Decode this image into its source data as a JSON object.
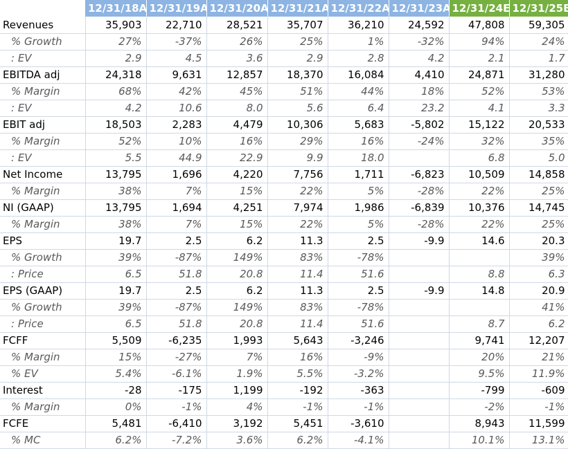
{
  "header": {
    "columns": [
      "12/31/18A",
      "12/31/19A",
      "12/31/20A",
      "12/31/21A",
      "12/31/22A",
      "12/31/23A",
      "12/31/24E",
      "12/31/25E"
    ]
  },
  "colors": {
    "actual_header": "#8db4e2",
    "estimate_header": "#76b041",
    "sub_row_text": "#595959"
  },
  "rows": [
    {
      "label": "Revenues",
      "sub": false,
      "values": [
        "35,903",
        "22,710",
        "28,521",
        "35,707",
        "36,210",
        "24,592",
        "47,808",
        "59,305"
      ]
    },
    {
      "label": "% Growth",
      "sub": true,
      "values": [
        "27%",
        "-37%",
        "26%",
        "25%",
        "1%",
        "-32%",
        "94%",
        "24%"
      ]
    },
    {
      "label": ": EV",
      "sub": true,
      "values": [
        "2.9",
        "4.5",
        "3.6",
        "2.9",
        "2.8",
        "4.2",
        "2.1",
        "1.7"
      ]
    },
    {
      "label": "EBITDA adj",
      "sub": false,
      "values": [
        "24,318",
        "9,631",
        "12,857",
        "18,370",
        "16,084",
        "4,410",
        "24,871",
        "31,280"
      ]
    },
    {
      "label": "% Margin",
      "sub": true,
      "values": [
        "68%",
        "42%",
        "45%",
        "51%",
        "44%",
        "18%",
        "52%",
        "53%"
      ]
    },
    {
      "label": ": EV",
      "sub": true,
      "values": [
        "4.2",
        "10.6",
        "8.0",
        "5.6",
        "6.4",
        "23.2",
        "4.1",
        "3.3"
      ]
    },
    {
      "label": "EBIT adj",
      "sub": false,
      "values": [
        "18,503",
        "2,283",
        "4,479",
        "10,306",
        "5,683",
        "-5,802",
        "15,122",
        "20,533"
      ]
    },
    {
      "label": "% Margin",
      "sub": true,
      "values": [
        "52%",
        "10%",
        "16%",
        "29%",
        "16%",
        "-24%",
        "32%",
        "35%"
      ]
    },
    {
      "label": ": EV",
      "sub": true,
      "values": [
        "5.5",
        "44.9",
        "22.9",
        "9.9",
        "18.0",
        "",
        "6.8",
        "5.0"
      ]
    },
    {
      "label": "Net Income",
      "sub": false,
      "values": [
        "13,795",
        "1,696",
        "4,220",
        "7,756",
        "1,711",
        "-6,823",
        "10,509",
        "14,858"
      ]
    },
    {
      "label": "% Margin",
      "sub": true,
      "values": [
        "38%",
        "7%",
        "15%",
        "22%",
        "5%",
        "-28%",
        "22%",
        "25%"
      ]
    },
    {
      "label": "NI (GAAP)",
      "sub": false,
      "values": [
        "13,795",
        "1,694",
        "4,251",
        "7,974",
        "1,986",
        "-6,839",
        "10,376",
        "14,745"
      ]
    },
    {
      "label": "% Margin",
      "sub": true,
      "values": [
        "38%",
        "7%",
        "15%",
        "22%",
        "5%",
        "-28%",
        "22%",
        "25%"
      ]
    },
    {
      "label": "EPS",
      "sub": false,
      "values": [
        "19.7",
        "2.5",
        "6.2",
        "11.3",
        "2.5",
        "-9.9",
        "14.6",
        "20.3"
      ]
    },
    {
      "label": "% Growth",
      "sub": true,
      "values": [
        "39%",
        "-87%",
        "149%",
        "83%",
        "-78%",
        "",
        "",
        "39%"
      ]
    },
    {
      "label": ": Price",
      "sub": true,
      "values": [
        "6.5",
        "51.8",
        "20.8",
        "11.4",
        "51.6",
        "",
        "8.8",
        "6.3"
      ]
    },
    {
      "label": "EPS (GAAP)",
      "sub": false,
      "values": [
        "19.7",
        "2.5",
        "6.2",
        "11.3",
        "2.5",
        "-9.9",
        "14.8",
        "20.9"
      ]
    },
    {
      "label": "% Growth",
      "sub": true,
      "values": [
        "39%",
        "-87%",
        "149%",
        "83%",
        "-78%",
        "",
        "",
        "41%"
      ]
    },
    {
      "label": ": Price",
      "sub": true,
      "values": [
        "6.5",
        "51.8",
        "20.8",
        "11.4",
        "51.6",
        "",
        "8.7",
        "6.2"
      ]
    },
    {
      "label": "FCFF",
      "sub": false,
      "values": [
        "5,509",
        "-6,235",
        "1,993",
        "5,643",
        "-3,246",
        "",
        "9,741",
        "12,207"
      ]
    },
    {
      "label": "% Margin",
      "sub": true,
      "values": [
        "15%",
        "-27%",
        "7%",
        "16%",
        "-9%",
        "",
        "20%",
        "21%"
      ]
    },
    {
      "label": "% EV",
      "sub": true,
      "values": [
        "5.4%",
        "-6.1%",
        "1.9%",
        "5.5%",
        "-3.2%",
        "",
        "9.5%",
        "11.9%"
      ]
    },
    {
      "label": "Interest",
      "sub": false,
      "values": [
        "-28",
        "-175",
        "1,199",
        "-192",
        "-363",
        "",
        "-799",
        "-609"
      ]
    },
    {
      "label": "% Margin",
      "sub": true,
      "values": [
        "0%",
        "-1%",
        "4%",
        "-1%",
        "-1%",
        "",
        "-2%",
        "-1%"
      ]
    },
    {
      "label": "FCFE",
      "sub": false,
      "values": [
        "5,481",
        "-6,410",
        "3,192",
        "5,451",
        "-3,610",
        "",
        "8,943",
        "11,599"
      ]
    },
    {
      "label": "% MC",
      "sub": true,
      "values": [
        "6.2%",
        "-7.2%",
        "3.6%",
        "6.2%",
        "-4.1%",
        "",
        "10.1%",
        "13.1%"
      ]
    }
  ]
}
